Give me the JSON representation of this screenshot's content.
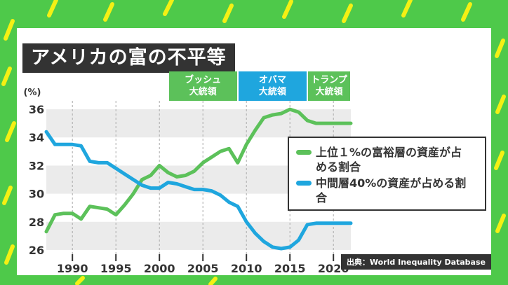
{
  "title": "アメリカの富の不平等",
  "source": "出典：World Inequality Database",
  "colors": {
    "green_series": "#5cc15a",
    "blue_series": "#1fa6de",
    "bush": "#5cc15a",
    "obama": "#1fa6de",
    "trump": "#5cc15a"
  },
  "eras": [
    {
      "name": "ブッシュ",
      "label": "大統領",
      "start": 2001,
      "end": 2009
    },
    {
      "name": "オバマ",
      "label": "大統領",
      "start": 2009,
      "end": 2017
    },
    {
      "name": "トランプ",
      "label": "大統領",
      "start": 2017,
      "end": 2022
    }
  ],
  "chart_data": {
    "type": "line",
    "title": "アメリカの富の不平等",
    "ylabel": "(%)",
    "xlabel": "",
    "xlim": [
      1987,
      2022
    ],
    "ylim": [
      25.6,
      36.6
    ],
    "yticks": [
      26,
      28,
      30,
      32,
      34,
      36
    ],
    "xticks": [
      1990,
      1995,
      2000,
      2005,
      2010,
      2015,
      2020
    ],
    "grid": "alternating horizontal bands",
    "legend": "right",
    "series": [
      {
        "name": "上位１%の富裕層の資産が占める割合",
        "color": "#5cc15a",
        "x": [
          1987,
          1988,
          1989,
          1990,
          1991,
          1992,
          1993,
          1994,
          1995,
          1996,
          1997,
          1998,
          1999,
          2000,
          2001,
          2002,
          2003,
          2004,
          2005,
          2006,
          2007,
          2008,
          2009,
          2010,
          2011,
          2012,
          2013,
          2014,
          2015,
          2016,
          2017,
          2018,
          2019,
          2020,
          2021,
          2022
        ],
        "values": [
          27.3,
          28.5,
          28.6,
          28.6,
          28.2,
          29.1,
          29.0,
          28.9,
          28.5,
          29.2,
          30.0,
          31.0,
          31.3,
          32.0,
          31.5,
          31.2,
          31.3,
          31.6,
          32.2,
          32.6,
          33.0,
          33.2,
          32.2,
          33.5,
          34.5,
          35.4,
          35.6,
          35.7,
          36.0,
          35.8,
          35.2,
          35.0,
          35.0,
          35.0,
          35.0,
          35.0
        ]
      },
      {
        "name": "中間層40%の資産が占める割合",
        "color": "#1fa6de",
        "x": [
          1987,
          1988,
          1989,
          1990,
          1991,
          1992,
          1993,
          1994,
          1995,
          1996,
          1997,
          1998,
          1999,
          2000,
          2001,
          2002,
          2003,
          2004,
          2005,
          2006,
          2007,
          2008,
          2009,
          2010,
          2011,
          2012,
          2013,
          2014,
          2015,
          2016,
          2017,
          2018,
          2019,
          2020,
          2021,
          2022
        ],
        "values": [
          34.4,
          33.5,
          33.5,
          33.5,
          33.4,
          32.3,
          32.2,
          32.2,
          31.8,
          31.4,
          31.0,
          30.6,
          30.4,
          30.4,
          30.8,
          30.7,
          30.5,
          30.3,
          30.3,
          30.2,
          29.9,
          29.4,
          29.1,
          28.0,
          27.2,
          26.6,
          26.2,
          26.1,
          26.2,
          26.7,
          27.8,
          27.9,
          27.9,
          27.9,
          27.9,
          27.9
        ]
      }
    ]
  }
}
